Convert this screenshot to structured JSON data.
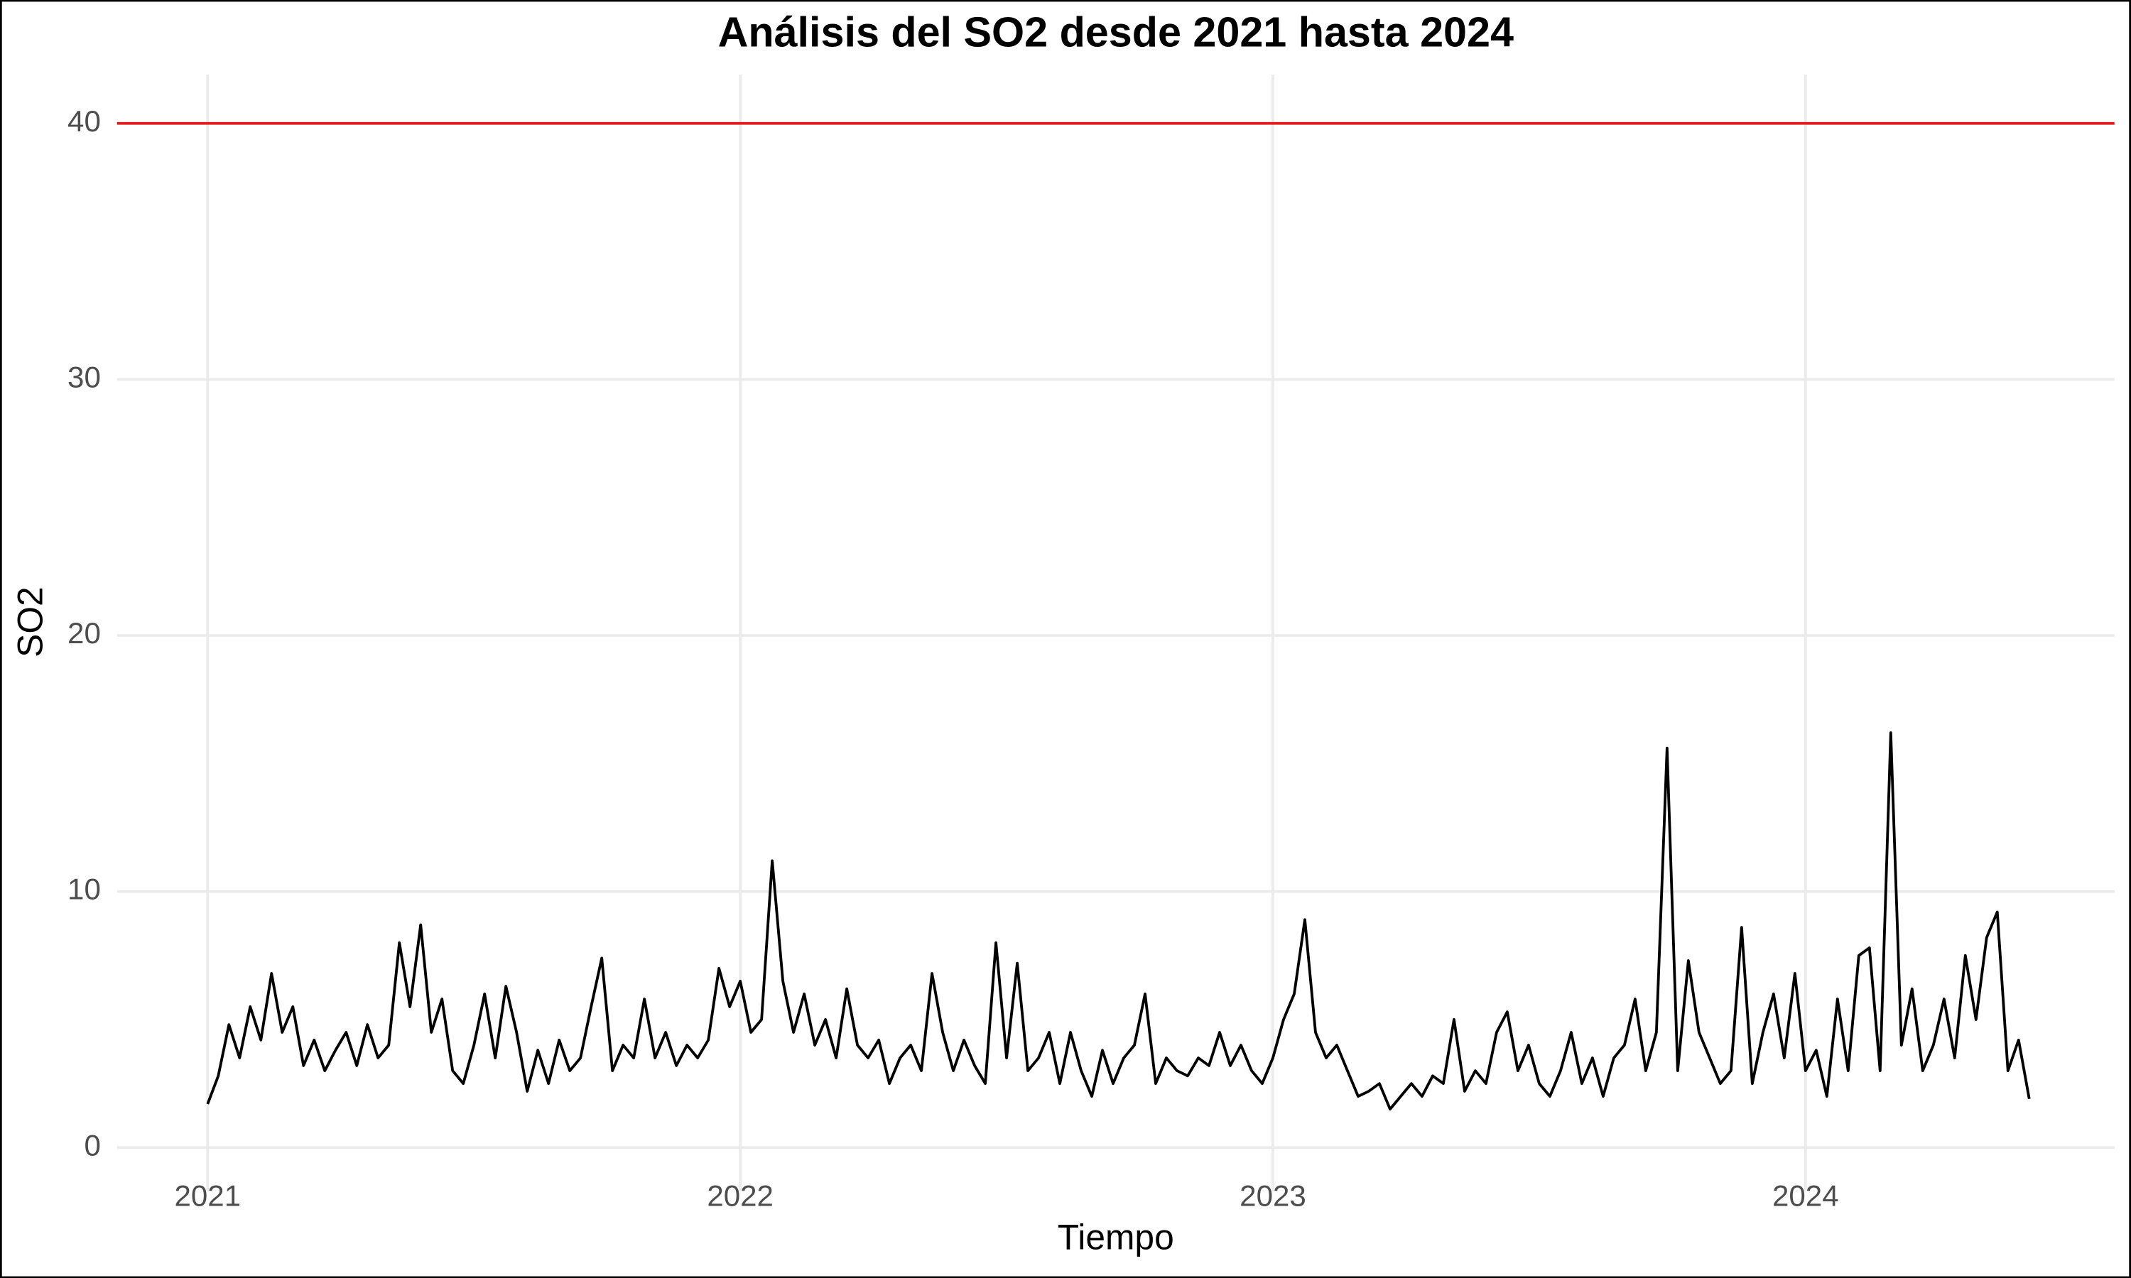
{
  "chart_data": {
    "type": "line",
    "title": "Análisis del SO2 desde 2021 hasta 2024",
    "x_label": "Tiempo",
    "y_label": "SO2",
    "xlim": [
      2020.83,
      2024.58
    ],
    "xticks": [
      2021,
      2022,
      2023,
      2024
    ],
    "ylim": [
      -1.7,
      41.9
    ],
    "yticks": [
      0,
      10,
      20,
      30,
      40
    ],
    "grid": true,
    "color": "#000000",
    "hline": 40,
    "hline_color": "#e41a1c",
    "x": [
      2021.0,
      2021.02,
      2021.04,
      2021.06,
      2021.08,
      2021.1,
      2021.12,
      2021.14,
      2021.16,
      2021.18,
      2021.2,
      2021.22,
      2021.24,
      2021.26,
      2021.28,
      2021.3,
      2021.32,
      2021.34,
      2021.36,
      2021.38,
      2021.4,
      2021.42,
      2021.44,
      2021.46,
      2021.48,
      2021.5,
      2021.52,
      2021.54,
      2021.56,
      2021.58,
      2021.6,
      2021.62,
      2021.64,
      2021.66,
      2021.68,
      2021.7,
      2021.72,
      2021.74,
      2021.76,
      2021.78,
      2021.8,
      2021.82,
      2021.84,
      2021.86,
      2021.88,
      2021.9,
      2021.92,
      2021.94,
      2021.96,
      2021.98,
      2022.0,
      2022.02,
      2022.04,
      2022.06,
      2022.08,
      2022.1,
      2022.12,
      2022.14,
      2022.16,
      2022.18,
      2022.2,
      2022.22,
      2022.24,
      2022.26,
      2022.28,
      2022.3,
      2022.32,
      2022.34,
      2022.36,
      2022.38,
      2022.4,
      2022.42,
      2022.44,
      2022.46,
      2022.48,
      2022.5,
      2022.52,
      2022.54,
      2022.56,
      2022.58,
      2022.6,
      2022.62,
      2022.64,
      2022.66,
      2022.68,
      2022.7,
      2022.72,
      2022.74,
      2022.76,
      2022.78,
      2022.8,
      2022.82,
      2022.84,
      2022.86,
      2022.88,
      2022.9,
      2022.92,
      2022.94,
      2022.96,
      2022.98,
      2023.0,
      2023.02,
      2023.04,
      2023.06,
      2023.08,
      2023.1,
      2023.12,
      2023.14,
      2023.16,
      2023.18,
      2023.2,
      2023.22,
      2023.24,
      2023.26,
      2023.28,
      2023.3,
      2023.32,
      2023.34,
      2023.36,
      2023.38,
      2023.4,
      2023.42,
      2023.44,
      2023.46,
      2023.48,
      2023.5,
      2023.52,
      2023.54,
      2023.56,
      2023.58,
      2023.6,
      2023.62,
      2023.64,
      2023.66,
      2023.68,
      2023.7,
      2023.72,
      2023.74,
      2023.76,
      2023.78,
      2023.8,
      2023.82,
      2023.84,
      2023.86,
      2023.88,
      2023.9,
      2023.92,
      2023.94,
      2023.96,
      2023.98,
      2024.0,
      2024.02,
      2024.04,
      2024.06,
      2024.08,
      2024.1,
      2024.12,
      2024.14,
      2024.16,
      2024.18,
      2024.2,
      2024.22,
      2024.24,
      2024.26,
      2024.28,
      2024.3,
      2024.32,
      2024.34,
      2024.36,
      2024.38,
      2024.4,
      2024.42
    ],
    "values": [
      1.7,
      2.8,
      4.8,
      3.5,
      5.5,
      4.2,
      6.8,
      4.5,
      5.5,
      3.2,
      4.2,
      3.0,
      3.8,
      4.5,
      3.2,
      4.8,
      3.5,
      4.0,
      8.0,
      5.5,
      8.7,
      4.5,
      5.8,
      3.0,
      2.5,
      4.0,
      6.0,
      3.5,
      6.3,
      4.5,
      2.2,
      3.8,
      2.5,
      4.2,
      3.0,
      3.5,
      5.5,
      7.4,
      3.0,
      4.0,
      3.5,
      5.8,
      3.5,
      4.5,
      3.2,
      4.0,
      3.5,
      4.2,
      7.0,
      5.5,
      6.5,
      4.5,
      5.0,
      11.2,
      6.5,
      4.5,
      6.0,
      4.0,
      5.0,
      3.5,
      6.2,
      4.0,
      3.5,
      4.2,
      2.5,
      3.5,
      4.0,
      3.0,
      6.8,
      4.5,
      3.0,
      4.2,
      3.2,
      2.5,
      8.0,
      3.5,
      7.2,
      3.0,
      3.5,
      4.5,
      2.5,
      4.5,
      3.0,
      2.0,
      3.8,
      2.5,
      3.5,
      4.0,
      6.0,
      2.5,
      3.5,
      3.0,
      2.8,
      3.5,
      3.2,
      4.5,
      3.2,
      4.0,
      3.0,
      2.5,
      3.5,
      5.0,
      6.0,
      8.9,
      4.5,
      3.5,
      4.0,
      3.0,
      2.0,
      2.2,
      2.5,
      1.5,
      2.0,
      2.5,
      2.0,
      2.8,
      2.5,
      5.0,
      2.2,
      3.0,
      2.5,
      4.5,
      5.3,
      3.0,
      4.0,
      2.5,
      2.0,
      3.0,
      4.5,
      2.5,
      3.5,
      2.0,
      3.5,
      4.0,
      5.8,
      3.0,
      4.5,
      15.6,
      3.0,
      7.3,
      4.5,
      3.5,
      2.5,
      3.0,
      8.6,
      2.5,
      4.5,
      6.0,
      3.5,
      6.8,
      3.0,
      3.8,
      2.0,
      5.8,
      3.0,
      7.5,
      7.8,
      3.0,
      16.2,
      4.0,
      6.2,
      3.0,
      4.0,
      5.8,
      3.5,
      7.5,
      5.0,
      8.2,
      9.2,
      3.0,
      4.2,
      1.9
    ]
  }
}
